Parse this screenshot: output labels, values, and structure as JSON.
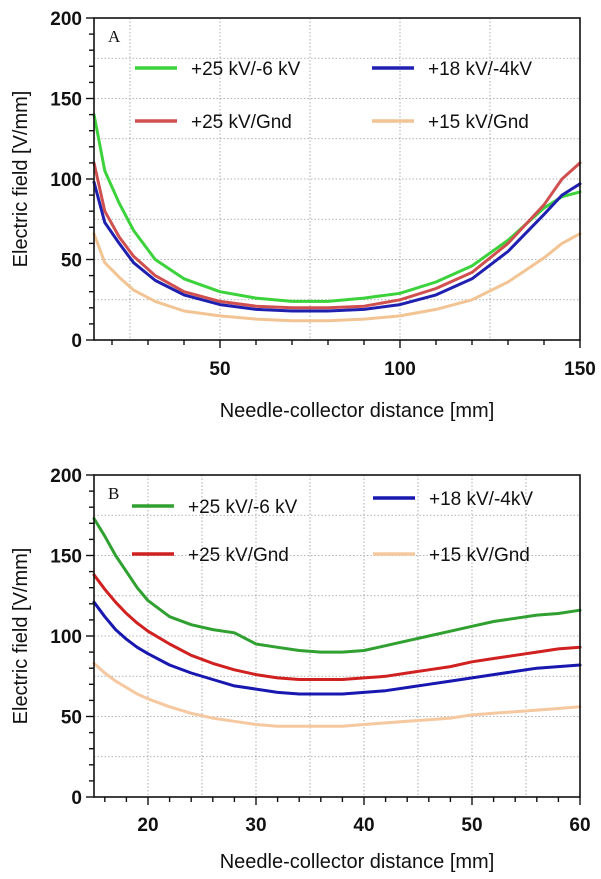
{
  "chart_data": [
    {
      "type": "line",
      "panel_label": "A",
      "xlabel": "Needle-collector distance [mm]",
      "ylabel": "Electric field [V/mm]",
      "xlim": [
        15,
        150
      ],
      "ylim": [
        0,
        200
      ],
      "xticks": [
        50,
        100,
        150
      ],
      "yticks": [
        0,
        50,
        100,
        150,
        200
      ],
      "grid": "dotted",
      "legend_position": "top",
      "series": [
        {
          "name": "+25 kV/-6 kV",
          "color": "#3cd23c",
          "x": [
            15,
            18,
            22,
            26,
            32,
            40,
            50,
            60,
            70,
            80,
            90,
            100,
            110,
            120,
            130,
            140,
            145,
            150
          ],
          "y": [
            140,
            105,
            85,
            68,
            50,
            38,
            30,
            26,
            24,
            24,
            26,
            29,
            36,
            46,
            62,
            82,
            89,
            92
          ]
        },
        {
          "name": "+18 kV/-4kV",
          "color": "#2020b0",
          "x": [
            15,
            18,
            22,
            26,
            32,
            40,
            50,
            60,
            70,
            80,
            90,
            100,
            110,
            120,
            130,
            140,
            145,
            150
          ],
          "y": [
            98,
            73,
            60,
            48,
            37,
            28,
            22,
            19,
            18,
            18,
            19,
            22,
            28,
            38,
            55,
            78,
            90,
            97
          ]
        },
        {
          "name": "+25 kV/Gnd",
          "color": "#d05050",
          "x": [
            15,
            18,
            22,
            26,
            32,
            40,
            50,
            60,
            70,
            80,
            90,
            100,
            110,
            120,
            130,
            140,
            145,
            150
          ],
          "y": [
            110,
            80,
            64,
            52,
            40,
            30,
            24,
            21,
            20,
            20,
            21,
            25,
            32,
            42,
            60,
            84,
            100,
            110
          ]
        },
        {
          "name": "+15 kV/Gnd",
          "color": "#f2c494",
          "x": [
            15,
            18,
            22,
            26,
            32,
            40,
            50,
            60,
            70,
            80,
            90,
            100,
            110,
            120,
            130,
            140,
            145,
            150
          ],
          "y": [
            66,
            48,
            39,
            31,
            24,
            18,
            15,
            13,
            12,
            12,
            13,
            15,
            19,
            25,
            36,
            51,
            60,
            66
          ]
        }
      ]
    },
    {
      "type": "line",
      "panel_label": "B",
      "xlabel": "Needle-collector distance [mm]",
      "ylabel": "Electric field [V/mm]",
      "xlim": [
        15,
        60
      ],
      "ylim": [
        0,
        200
      ],
      "xticks": [
        20,
        30,
        40,
        50,
        60
      ],
      "yticks": [
        0,
        50,
        100,
        150,
        200
      ],
      "grid": "dotted",
      "legend_position": "top",
      "series": [
        {
          "name": "+25 kV/-6 kV",
          "color": "#30a030",
          "x": [
            15,
            16,
            17,
            18,
            19,
            20,
            22,
            24,
            26,
            28,
            30,
            32,
            34,
            36,
            38,
            40,
            42,
            44,
            46,
            48,
            50,
            52,
            54,
            56,
            58,
            60
          ],
          "y": [
            173,
            162,
            150,
            140,
            130,
            122,
            112,
            107,
            104,
            102,
            95,
            93,
            91,
            90,
            90,
            91,
            94,
            97,
            100,
            103,
            106,
            109,
            111,
            113,
            114,
            116
          ]
        },
        {
          "name": "+18 kV/-4kV",
          "color": "#1818b0",
          "x": [
            15,
            16,
            17,
            18,
            19,
            20,
            22,
            24,
            26,
            28,
            30,
            32,
            34,
            36,
            38,
            40,
            42,
            44,
            46,
            48,
            50,
            52,
            54,
            56,
            58,
            60
          ],
          "y": [
            121,
            112,
            104,
            98,
            93,
            89,
            82,
            77,
            73,
            69,
            67,
            65,
            64,
            64,
            64,
            65,
            66,
            68,
            70,
            72,
            74,
            76,
            78,
            80,
            81,
            82
          ]
        },
        {
          "name": "+25 kV/Gnd",
          "color": "#d02020",
          "x": [
            15,
            16,
            17,
            18,
            19,
            20,
            22,
            24,
            26,
            28,
            30,
            32,
            34,
            36,
            38,
            40,
            42,
            44,
            46,
            48,
            50,
            52,
            54,
            56,
            58,
            60
          ],
          "y": [
            138,
            129,
            121,
            114,
            108,
            103,
            95,
            88,
            83,
            79,
            76,
            74,
            73,
            73,
            73,
            74,
            75,
            77,
            79,
            81,
            84,
            86,
            88,
            90,
            92,
            93
          ]
        },
        {
          "name": "+15 kV/Gnd",
          "color": "#f5c8a0",
          "x": [
            15,
            16,
            17,
            18,
            19,
            20,
            22,
            24,
            26,
            28,
            30,
            32,
            34,
            36,
            38,
            40,
            42,
            44,
            46,
            48,
            50,
            52,
            54,
            56,
            58,
            60
          ],
          "y": [
            83,
            77,
            72,
            68,
            64,
            61,
            56,
            52,
            49,
            47,
            45,
            44,
            44,
            44,
            44,
            45,
            46,
            47,
            48,
            49,
            51,
            52,
            53,
            54,
            55,
            56
          ]
        }
      ]
    }
  ]
}
